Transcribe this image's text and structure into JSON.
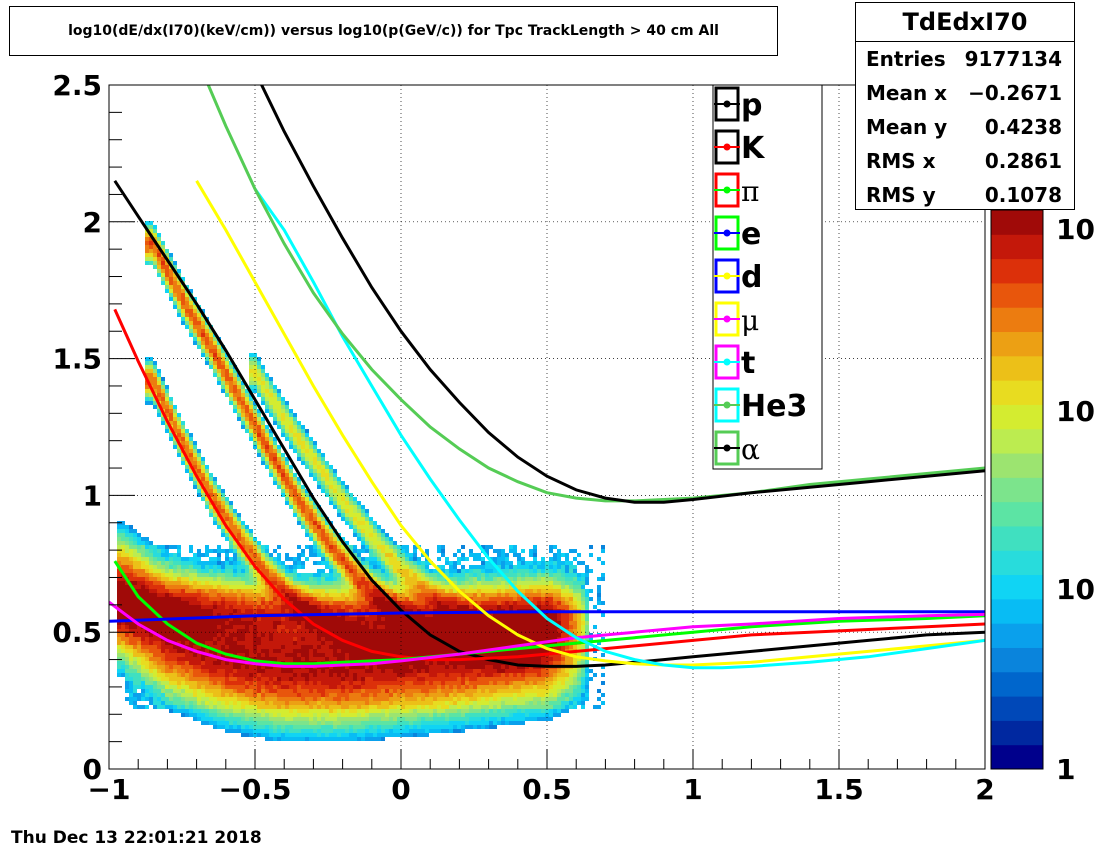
{
  "title": "log10(dE/dx(I70)(keV/cm)) versus log10(p(GeV/c)) for Tpc TrackLength > 40 cm All",
  "stats": {
    "name": "TdEdxI70",
    "rows": [
      {
        "label": "Entries",
        "value": "9177134"
      },
      {
        "label": "Mean x",
        "value": "−0.2671"
      },
      {
        "label": "Mean y",
        "value": "0.4238"
      },
      {
        "label": "RMS x",
        "value": "0.2861"
      },
      {
        "label": "RMS y",
        "value": "0.1078"
      }
    ]
  },
  "timestamp": "Thu Dec 13 22:01:21 2018",
  "chart_data": {
    "type": "heatmap",
    "title": "log10(dE/dx(I70)(keV/cm)) versus log10(p(GeV/c)) for Tpc TrackLength > 40 cm All",
    "xlabel": "",
    "ylabel": "",
    "xlim": [
      -1,
      2
    ],
    "ylim": [
      0,
      2.5
    ],
    "grid": true,
    "x_ticks": [
      {
        "value": -1,
        "label": "−1"
      },
      {
        "value": -0.5,
        "label": "−0.5"
      },
      {
        "value": 0,
        "label": "0"
      },
      {
        "value": 0.5,
        "label": "0.5"
      },
      {
        "value": 1,
        "label": "1"
      },
      {
        "value": 1.5,
        "label": "1.5"
      },
      {
        "value": 2,
        "label": "2"
      }
    ],
    "y_ticks": [
      {
        "value": 0,
        "label": "0"
      },
      {
        "value": 0.5,
        "label": "0.5"
      },
      {
        "value": 1,
        "label": "1"
      },
      {
        "value": 1.5,
        "label": "1.5"
      },
      {
        "value": 2,
        "label": "2"
      },
      {
        "value": 2.5,
        "label": "2.5"
      }
    ],
    "z_scale": "log",
    "z_ticks": [
      "1",
      "10",
      "10",
      "10"
    ],
    "palette": [
      "#00008c",
      "#0028a0",
      "#0048b8",
      "#0066cc",
      "#0a84dc",
      "#0aa0ec",
      "#08bcf4",
      "#10d4f4",
      "#28dcdc",
      "#40e0c0",
      "#5ce4a4",
      "#7ce48c",
      "#9ce470",
      "#bcec50",
      "#d4ec30",
      "#e8dc20",
      "#ecc018",
      "#eca014",
      "#ec7c10",
      "#e8560c",
      "#dc300a",
      "#c4180a",
      "#a00a08"
    ],
    "legend_position": "top-center",
    "legend": [
      {
        "name": "p",
        "color": "#000000"
      },
      {
        "name": "K",
        "color": "#ff0000"
      },
      {
        "name": "π",
        "color": "#00ff00"
      },
      {
        "name": "e",
        "color": "#0000ff"
      },
      {
        "name": "d",
        "color": "#ffff00"
      },
      {
        "name": "μ",
        "color": "#ff00ff"
      },
      {
        "name": "t",
        "color": "#00ffff"
      },
      {
        "name": "He3",
        "color": "#55cc55"
      },
      {
        "name": "α",
        "color": "#000000"
      }
    ],
    "density_bands": [
      {
        "name": "pion-band",
        "x": [
          -0.95,
          -0.8,
          -0.6,
          -0.4,
          -0.2,
          0,
          0.2,
          0.4,
          0.6
        ],
        "y": [
          0.62,
          0.5,
          0.42,
          0.38,
          0.38,
          0.4,
          0.42,
          0.45,
          0.47
        ],
        "width": 0.11,
        "peak": 1.0
      },
      {
        "name": "electron-band",
        "x": [
          -0.95,
          -0.6,
          -0.3,
          0,
          0.3,
          0.6
        ],
        "y": [
          0.6,
          0.58,
          0.56,
          0.56,
          0.56,
          0.56
        ],
        "width": 0.06,
        "peak": 0.55
      },
      {
        "name": "kaon-band",
        "x": [
          -0.85,
          -0.75,
          -0.65,
          -0.55,
          -0.45,
          -0.35,
          -0.25,
          -0.15,
          -0.05,
          0.05
        ],
        "y": [
          1.42,
          1.2,
          1.0,
          0.84,
          0.7,
          0.6,
          0.53,
          0.47,
          0.44,
          0.42
        ],
        "width": 0.035,
        "peak": 0.6
      },
      {
        "name": "proton-band",
        "x": [
          -0.85,
          -0.75,
          -0.65,
          -0.55,
          -0.45,
          -0.35,
          -0.25,
          -0.15,
          -0.05,
          0.05,
          0.15,
          0.25,
          0.35,
          0.45
        ],
        "y": [
          1.92,
          1.72,
          1.54,
          1.35,
          1.16,
          0.98,
          0.83,
          0.7,
          0.6,
          0.52,
          0.47,
          0.44,
          0.42,
          0.41
        ],
        "width": 0.035,
        "peak": 0.65
      },
      {
        "name": "deuteron-band",
        "x": [
          -0.5,
          -0.4,
          -0.3,
          -0.2,
          -0.1,
          0,
          0.1,
          0.2,
          0.3,
          0.4
        ],
        "y": [
          1.45,
          1.28,
          1.13,
          0.98,
          0.85,
          0.73,
          0.64,
          0.56,
          0.5,
          0.47
        ],
        "width": 0.035,
        "peak": 0.3
      }
    ],
    "series": [
      {
        "name": "p",
        "color": "#000000",
        "x": [
          -0.98,
          -0.9,
          -0.8,
          -0.7,
          -0.6,
          -0.5,
          -0.4,
          -0.3,
          -0.2,
          -0.1,
          0,
          0.1,
          0.2,
          0.3,
          0.4,
          0.5,
          0.6,
          0.7,
          0.8,
          0.9,
          1,
          1.2,
          1.4,
          1.6,
          1.8,
          2
        ],
        "y": [
          2.15,
          2.02,
          1.86,
          1.7,
          1.53,
          1.35,
          1.17,
          0.99,
          0.83,
          0.69,
          0.58,
          0.49,
          0.43,
          0.4,
          0.38,
          0.375,
          0.375,
          0.38,
          0.39,
          0.4,
          0.41,
          0.43,
          0.45,
          0.47,
          0.49,
          0.5
        ]
      },
      {
        "name": "K",
        "color": "#ff0000",
        "x": [
          -0.98,
          -0.9,
          -0.8,
          -0.7,
          -0.6,
          -0.5,
          -0.4,
          -0.3,
          -0.2,
          -0.1,
          0,
          0.1,
          0.2,
          0.4,
          0.6,
          0.8,
          1,
          1.2,
          1.4,
          1.6,
          1.8,
          2
        ],
        "y": [
          1.68,
          1.49,
          1.27,
          1.07,
          0.89,
          0.74,
          0.62,
          0.53,
          0.47,
          0.43,
          0.41,
          0.4,
          0.4,
          0.41,
          0.43,
          0.45,
          0.47,
          0.49,
          0.5,
          0.51,
          0.52,
          0.53
        ]
      },
      {
        "name": "π",
        "color": "#00ff00",
        "x": [
          -0.98,
          -0.9,
          -0.8,
          -0.7,
          -0.6,
          -0.5,
          -0.4,
          -0.3,
          -0.2,
          -0.1,
          0,
          0.2,
          0.4,
          0.6,
          0.8,
          1,
          1.2,
          1.5,
          1.8,
          2
        ],
        "y": [
          0.76,
          0.63,
          0.53,
          0.46,
          0.42,
          0.395,
          0.385,
          0.385,
          0.39,
          0.395,
          0.4,
          0.42,
          0.44,
          0.46,
          0.48,
          0.5,
          0.52,
          0.54,
          0.55,
          0.56
        ]
      },
      {
        "name": "e",
        "color": "#0000ff",
        "x": [
          -1,
          -0.5,
          0,
          0.5,
          1,
          1.5,
          2
        ],
        "y": [
          0.54,
          0.56,
          0.57,
          0.575,
          0.575,
          0.575,
          0.575
        ]
      },
      {
        "name": "d",
        "color": "#ffff00",
        "x": [
          -0.7,
          -0.6,
          -0.5,
          -0.4,
          -0.3,
          -0.2,
          -0.1,
          0,
          0.1,
          0.2,
          0.3,
          0.4,
          0.5,
          0.6,
          0.7,
          0.8,
          0.9,
          1,
          1.2,
          1.4,
          1.6,
          1.8,
          2
        ],
        "y": [
          2.15,
          1.97,
          1.78,
          1.59,
          1.4,
          1.22,
          1.05,
          0.89,
          0.76,
          0.65,
          0.56,
          0.49,
          0.44,
          0.41,
          0.395,
          0.385,
          0.38,
          0.38,
          0.39,
          0.41,
          0.43,
          0.45,
          0.47
        ]
      },
      {
        "name": "μ",
        "color": "#ff00ff",
        "x": [
          -1,
          -0.9,
          -0.8,
          -0.7,
          -0.6,
          -0.5,
          -0.4,
          -0.3,
          -0.2,
          -0.1,
          0,
          0.2,
          0.4,
          0.6,
          0.8,
          1,
          1.2,
          1.5,
          1.8,
          2
        ],
        "y": [
          0.61,
          0.53,
          0.47,
          0.43,
          0.4,
          0.385,
          0.375,
          0.375,
          0.38,
          0.385,
          0.395,
          0.42,
          0.45,
          0.48,
          0.5,
          0.52,
          0.53,
          0.55,
          0.56,
          0.565
        ]
      },
      {
        "name": "t",
        "color": "#00ffff",
        "x": [
          -0.5,
          -0.4,
          -0.3,
          -0.2,
          -0.1,
          0,
          0.1,
          0.2,
          0.3,
          0.4,
          0.5,
          0.6,
          0.7,
          0.8,
          0.9,
          1,
          1.1,
          1.2,
          1.4,
          1.6,
          1.8,
          2
        ],
        "y": [
          2.12,
          1.97,
          1.78,
          1.58,
          1.4,
          1.22,
          1.06,
          0.91,
          0.77,
          0.65,
          0.55,
          0.48,
          0.43,
          0.4,
          0.38,
          0.37,
          0.37,
          0.375,
          0.39,
          0.41,
          0.44,
          0.47
        ]
      },
      {
        "name": "He3",
        "color": "#55cc55",
        "x": [
          -0.7,
          -0.6,
          -0.5,
          -0.4,
          -0.3,
          -0.2,
          -0.1,
          0,
          0.1,
          0.2,
          0.3,
          0.4,
          0.5,
          0.6,
          0.7,
          0.8,
          0.9,
          1,
          1.2,
          1.4,
          1.6,
          1.8,
          2
        ],
        "y": [
          2.6,
          2.35,
          2.12,
          1.92,
          1.74,
          1.59,
          1.46,
          1.35,
          1.25,
          1.17,
          1.1,
          1.05,
          1.01,
          0.99,
          0.98,
          0.98,
          0.985,
          0.99,
          1.01,
          1.04,
          1.06,
          1.08,
          1.1
        ]
      },
      {
        "name": "α",
        "color": "#000000",
        "x": [
          -0.55,
          -0.5,
          -0.4,
          -0.3,
          -0.2,
          -0.1,
          0,
          0.1,
          0.2,
          0.3,
          0.4,
          0.5,
          0.6,
          0.7,
          0.8,
          0.9,
          1,
          1.2,
          1.4,
          1.6,
          1.8,
          2
        ],
        "y": [
          2.65,
          2.55,
          2.33,
          2.13,
          1.94,
          1.76,
          1.6,
          1.46,
          1.34,
          1.23,
          1.14,
          1.07,
          1.02,
          0.99,
          0.975,
          0.975,
          0.985,
          1.01,
          1.03,
          1.05,
          1.07,
          1.09
        ]
      }
    ]
  }
}
